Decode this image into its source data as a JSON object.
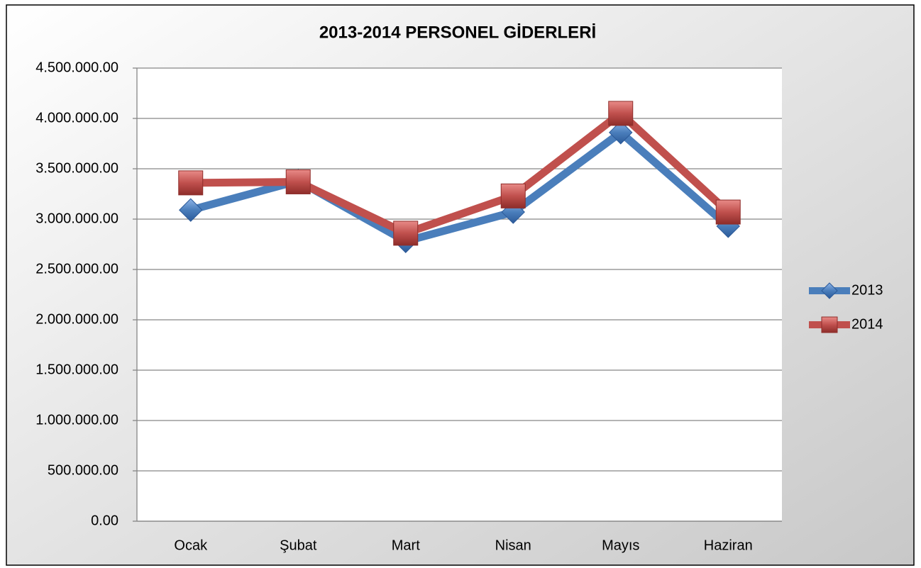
{
  "chart_data": {
    "type": "line",
    "title": "2013-2014 PERSONEL GİDERLERİ",
    "categories": [
      "Ocak",
      "Şubat",
      "Mart",
      "Nisan",
      "Mayıs",
      "Haziran"
    ],
    "series": [
      {
        "name": "2013",
        "color": "#4a7ebb",
        "marker": "diamond",
        "values": [
          3090000,
          3380000,
          2780000,
          3070000,
          3860000,
          2930000
        ]
      },
      {
        "name": "2014",
        "color": "#c0504d",
        "marker": "square",
        "values": [
          3360000,
          3370000,
          2860000,
          3230000,
          4050000,
          3070000
        ]
      }
    ],
    "ylim": [
      0,
      4500000
    ],
    "yticks": [
      {
        "value": 0,
        "label": "0.00"
      },
      {
        "value": 500000,
        "label": "500.000.00"
      },
      {
        "value": 1000000,
        "label": "1.000.000.00"
      },
      {
        "value": 1500000,
        "label": "1.500.000.00"
      },
      {
        "value": 2000000,
        "label": "2.000.000.00"
      },
      {
        "value": 2500000,
        "label": "2.500.000.00"
      },
      {
        "value": 3000000,
        "label": "3.000.000.00"
      },
      {
        "value": 3500000,
        "label": "3.500.000.00"
      },
      {
        "value": 4000000,
        "label": "4.000.000.00"
      },
      {
        "value": 4500000,
        "label": "4.500.000.00"
      }
    ],
    "grid": true,
    "legend": "right"
  }
}
